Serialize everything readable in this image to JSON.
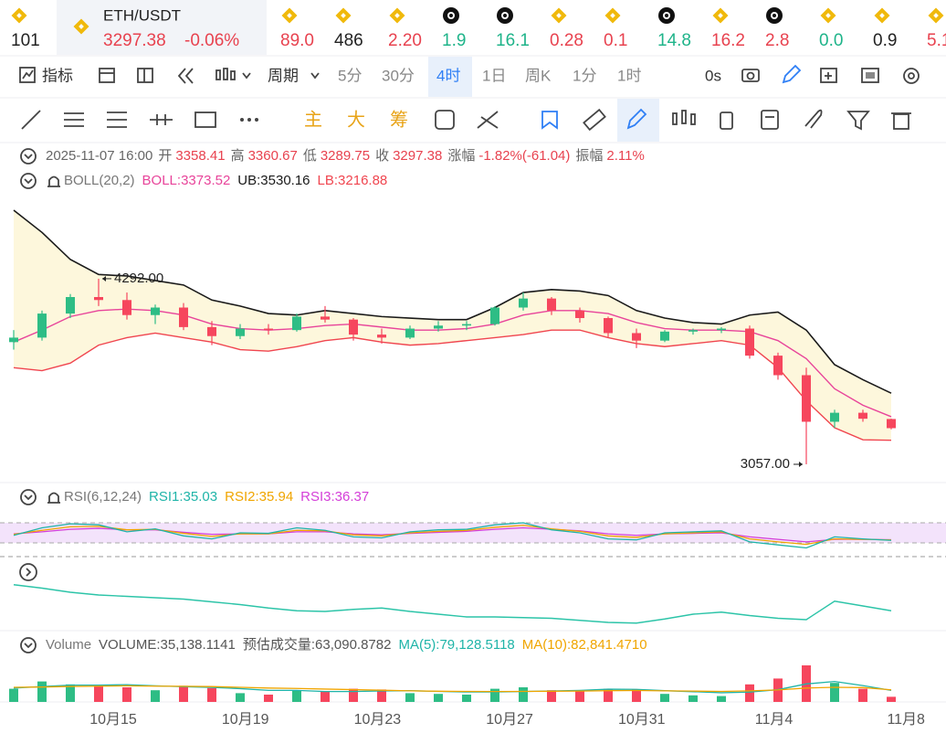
{
  "ticker": [
    {
      "icon": "bnb",
      "price": "101",
      "color": "#222222"
    },
    {
      "icon": "bnb",
      "name": "ETH/USDT",
      "price": "3297.38",
      "change": "-0.06%",
      "color": "#e8424f"
    },
    {
      "icon": "bnb",
      "price": "89.0",
      "color": "#e8424f"
    },
    {
      "icon": "bnb",
      "price": "486",
      "color": "#222222"
    },
    {
      "icon": "bnb",
      "price": "2.20",
      "color": "#e8424f"
    },
    {
      "icon": "chk",
      "price": "1.9",
      "color": "#1fb48a"
    },
    {
      "icon": "chk",
      "price": "16.1",
      "color": "#1fb48a"
    },
    {
      "icon": "bnb",
      "price": "0.28",
      "color": "#e8424f"
    },
    {
      "icon": "bnb",
      "price": "0.1",
      "color": "#e8424f"
    },
    {
      "icon": "chk",
      "price": "14.8",
      "color": "#1fb48a"
    },
    {
      "icon": "bnb",
      "price": "16.2",
      "color": "#e8424f"
    },
    {
      "icon": "chk",
      "price": "2.8",
      "color": "#e8424f"
    },
    {
      "icon": "bnb",
      "price": "0.0",
      "color": "#1fb48a"
    },
    {
      "icon": "bnb",
      "price": "0.9",
      "color": "#222222"
    },
    {
      "icon": "bnb",
      "price": "5.1",
      "color": "#e8424f"
    }
  ],
  "toolbar": {
    "indicator": "指标",
    "period": "周期",
    "intervals": [
      "5分",
      "30分",
      "4时",
      "1日",
      "周K",
      "1分",
      "1时"
    ],
    "active": 2,
    "timer": "0s"
  },
  "draw_tools": [
    "主",
    "大",
    "筹"
  ],
  "info": {
    "time": "2025-11-07 16:00",
    "items": [
      {
        "label": "开",
        "value": "3358.41"
      },
      {
        "label": "高",
        "value": "3360.67"
      },
      {
        "label": "低",
        "value": "3289.75"
      },
      {
        "label": "收",
        "value": "3297.38"
      },
      {
        "label": "涨幅",
        "value": "-1.82%(-61.04)"
      },
      {
        "label": "振幅",
        "value": "2.11%"
      }
    ]
  },
  "main": {
    "title": "BOLL(20,2)",
    "ylim": [
      2984,
      4839
    ],
    "up_color": "#2ebd85",
    "down_color": "#f6465d",
    "band_fill": "#fdf7dc",
    "candles": [
      [
        3870,
        3950,
        3820,
        3900
      ],
      [
        3900,
        4080,
        3880,
        4060
      ],
      [
        4060,
        4190,
        4030,
        4170
      ],
      [
        4170,
        4292,
        4110,
        4150
      ],
      [
        4150,
        4200,
        4020,
        4050
      ],
      [
        4050,
        4120,
        3990,
        4100
      ],
      [
        4100,
        4130,
        3950,
        3970
      ],
      [
        3970,
        4010,
        3850,
        3910
      ],
      [
        3910,
        3990,
        3890,
        3960
      ],
      [
        3960,
        3990,
        3920,
        3950
      ],
      [
        3950,
        4060,
        3940,
        4040
      ],
      [
        4040,
        4110,
        4000,
        4020
      ],
      [
        4020,
        4030,
        3880,
        3920
      ],
      [
        3920,
        3960,
        3860,
        3900
      ],
      [
        3900,
        3980,
        3890,
        3960
      ],
      [
        3960,
        4010,
        3940,
        3980
      ],
      [
        3980,
        4010,
        3950,
        3990
      ],
      [
        3990,
        4110,
        3980,
        4100
      ],
      [
        4100,
        4200,
        4080,
        4160
      ],
      [
        4160,
        4170,
        4050,
        4080
      ],
      [
        4080,
        4100,
        4000,
        4030
      ],
      [
        4030,
        4040,
        3900,
        3930
      ],
      [
        3930,
        3960,
        3830,
        3880
      ],
      [
        3880,
        3950,
        3870,
        3940
      ],
      [
        3940,
        3960,
        3920,
        3950
      ],
      [
        3950,
        3970,
        3930,
        3960
      ],
      [
        3960,
        3980,
        3760,
        3780
      ],
      [
        3780,
        3800,
        3620,
        3650
      ],
      [
        3650,
        3700,
        3057,
        3340
      ],
      [
        3340,
        3420,
        3300,
        3400
      ],
      [
        3400,
        3420,
        3340,
        3360
      ],
      [
        3358.41,
        3360.67,
        3289.75,
        3297.38
      ]
    ],
    "series": [
      {
        "name": "BOLL:3373.52",
        "color": "#e8449a",
        "values": [
          3870,
          3950,
          4040,
          4080,
          4090,
          4080,
          4050,
          3990,
          3960,
          3950,
          3960,
          3980,
          3990,
          3970,
          3950,
          3950,
          3960,
          3990,
          4050,
          4080,
          4080,
          4060,
          4000,
          3960,
          3950,
          3950,
          3940,
          3880,
          3760,
          3560,
          3450,
          3373.52
        ]
      },
      {
        "name": "UB:3530.16",
        "color": "#1a1a1a",
        "values": [
          4748,
          4600,
          4420,
          4320,
          4310,
          4280,
          4250,
          4150,
          4110,
          4060,
          4050,
          4080,
          4060,
          4040,
          4030,
          4020,
          4020,
          4100,
          4200,
          4220,
          4210,
          4180,
          4080,
          4030,
          4000,
          3990,
          4050,
          4070,
          3950,
          3720,
          3620,
          3530.16
        ]
      },
      {
        "name": "LB:3216.88",
        "color": "#f0454f",
        "values": [
          3700,
          3680,
          3730,
          3850,
          3900,
          3930,
          3900,
          3870,
          3820,
          3810,
          3840,
          3880,
          3900,
          3870,
          3850,
          3860,
          3880,
          3900,
          3920,
          3950,
          3950,
          3900,
          3860,
          3840,
          3860,
          3880,
          3850,
          3700,
          3480,
          3300,
          3220,
          3216.88
        ]
      }
    ],
    "annotations": [
      {
        "value": 4292,
        "label": "4292.00"
      },
      {
        "value": 3057,
        "label": "3057.00"
      }
    ]
  },
  "rsi": {
    "title": "RSI(6,12,24)",
    "ylim": [
      0,
      100
    ],
    "levels": [
      30,
      70
    ],
    "level_fill": "#f3e3fb",
    "series": [
      {
        "name": "RSI1:35.03",
        "color": "#1fb4a8",
        "values": [
          45,
          60,
          68,
          66,
          52,
          58,
          44,
          38,
          50,
          49,
          60,
          55,
          42,
          40,
          52,
          56,
          57,
          66,
          70,
          56,
          50,
          38,
          36,
          50,
          52,
          54,
          32,
          26,
          20,
          42,
          38,
          35.03
        ]
      },
      {
        "name": "RSI2:35.94",
        "color": "#f0a500",
        "values": [
          47,
          55,
          62,
          63,
          56,
          57,
          49,
          43,
          48,
          48,
          55,
          54,
          46,
          44,
          50,
          53,
          55,
          61,
          65,
          58,
          53,
          44,
          41,
          48,
          50,
          52,
          38,
          32,
          27,
          38,
          37,
          35.94
        ]
      },
      {
        "name": "RSI3:36.37",
        "color": "#d43fd8",
        "values": [
          48,
          52,
          57,
          59,
          56,
          56,
          51,
          47,
          48,
          48,
          52,
          52,
          48,
          46,
          49,
          51,
          53,
          57,
          60,
          57,
          54,
          48,
          45,
          48,
          49,
          50,
          42,
          37,
          32,
          37,
          37,
          36.37
        ]
      }
    ]
  },
  "sub": {
    "ylim": [
      0,
      100
    ],
    "color": "#2cc4a8",
    "values": [
      67,
      62,
      56,
      52,
      50,
      48,
      46,
      42,
      38,
      33,
      29,
      28,
      31,
      33,
      28,
      24,
      20,
      20,
      19,
      18,
      15,
      12,
      11,
      17,
      24,
      27,
      22,
      18,
      16,
      43,
      36,
      29
    ]
  },
  "volume": {
    "title": "Volume",
    "items": [
      "VOLUME:35,138.1141",
      "预估成交量:63,090.8782"
    ],
    "ylim": [
      0,
      300000
    ],
    "values": [
      90000,
      140000,
      120000,
      110000,
      100000,
      80000,
      110000,
      95000,
      60000,
      50000,
      80000,
      70000,
      90000,
      85000,
      60000,
      55000,
      50000,
      90000,
      100000,
      80000,
      75000,
      90000,
      85000,
      55000,
      45000,
      40000,
      120000,
      160000,
      250000,
      130000,
      90000,
      35138.1141
    ],
    "series": [
      {
        "name": "MA(5):79,128.5118",
        "color": "#1fb4a8",
        "values": [
          95000,
          105000,
          115000,
          115000,
          118000,
          110000,
          104000,
          99000,
          91000,
          79000,
          79000,
          71000,
          71000,
          75000,
          77000,
          72000,
          68000,
          68000,
          71000,
          75000,
          79000,
          87000,
          86000,
          77000,
          70000,
          63000,
          67000,
          84000,
          123000,
          140000,
          112000,
          79128.5118
        ]
      },
      {
        "name": "MA(10):82,841.4710",
        "color": "#f0a500",
        "values": [
          100000,
          102000,
          106000,
          108000,
          110000,
          108000,
          107000,
          105000,
          100000,
          95000,
          92000,
          88000,
          84000,
          80000,
          76000,
          73000,
          72000,
          71000,
          72000,
          73000,
          74000,
          77000,
          78000,
          76000,
          74000,
          72000,
          76000,
          82000,
          95000,
          100000,
          98000,
          82841.471
        ]
      }
    ]
  },
  "xaxis": {
    "labels": [
      "10月15",
      "10月19",
      "10月23",
      "10月27",
      "10月31",
      "11月4",
      "11月8"
    ]
  }
}
